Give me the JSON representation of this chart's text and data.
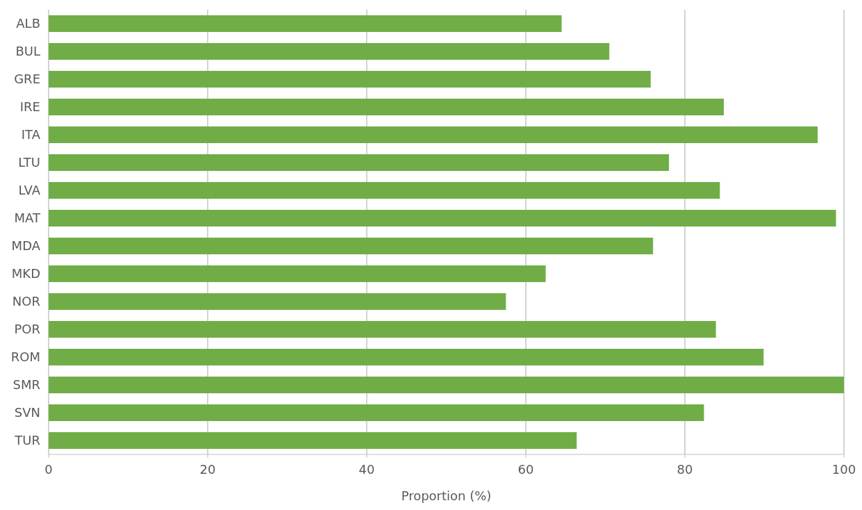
{
  "chart_data": {
    "type": "bar",
    "orientation": "horizontal",
    "xlabel": "Proportion (%)",
    "categories": [
      "ALB",
      "BUL",
      "GRE",
      "IRE",
      "ITA",
      "LTU",
      "LVA",
      "MAT",
      "MDA",
      "MKD",
      "NOR",
      "POR",
      "ROM",
      "SMR",
      "SVN",
      "TUR"
    ],
    "values": [
      64.5,
      70.5,
      75.7,
      84.9,
      96.7,
      78.0,
      84.4,
      99.0,
      76.0,
      62.5,
      57.5,
      83.9,
      89.9,
      100,
      82.4,
      66.4
    ],
    "color": "#70ad47",
    "xlim": [
      0,
      100
    ],
    "xticks": [
      0,
      20,
      40,
      60,
      80,
      100
    ],
    "grid": "x"
  }
}
